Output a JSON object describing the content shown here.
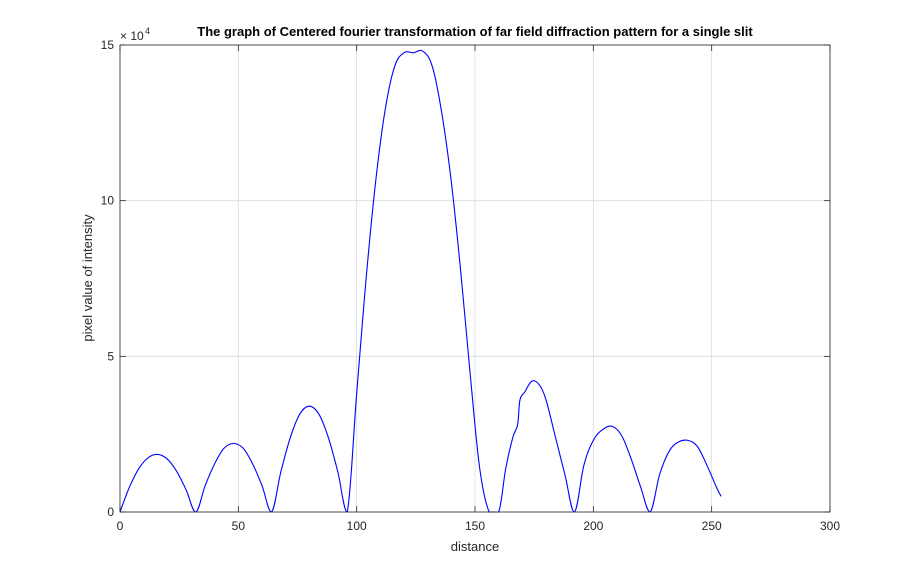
{
  "chart_data": {
    "type": "line",
    "title": "The graph of Centered fourier transformation of far field diffraction pattern for a single slit",
    "xlabel": "distance",
    "ylabel": "pixel value of intensity",
    "xlim": [
      0,
      300
    ],
    "ylim": [
      0,
      150000
    ],
    "x_ticks": [
      "0",
      "50",
      "100",
      "150",
      "200",
      "250",
      "300"
    ],
    "y_ticks": [
      "0",
      "5",
      "10",
      "15"
    ],
    "y_exponent_base": "× 10",
    "y_exponent_power": "4",
    "grid": true,
    "box": true,
    "series": [
      {
        "color": "#0000ff",
        "x": [
          0,
          4,
          8,
          12,
          16,
          20,
          24,
          28,
          32,
          36,
          40,
          44,
          48,
          52,
          56,
          60,
          64,
          68,
          72,
          76,
          80,
          84,
          88,
          92,
          96,
          100,
          104,
          108,
          112,
          116,
          120,
          124,
          128,
          132,
          136,
          140,
          144,
          148,
          152,
          156,
          160,
          163,
          166,
          168,
          169,
          171,
          174,
          177,
          180,
          184,
          188,
          192,
          196,
          200,
          204,
          208,
          212,
          216,
          220,
          224,
          228,
          232,
          236,
          240,
          244,
          248,
          252,
          254
        ],
        "y": [
          0,
          8000,
          14000,
          17500,
          18500,
          17000,
          13000,
          7000,
          0,
          8500,
          15500,
          20500,
          22000,
          20500,
          15500,
          8500,
          0,
          13000,
          24000,
          31500,
          34000,
          31500,
          24000,
          13000,
          0,
          38000,
          75000,
          106000,
          129000,
          143000,
          147500,
          147500,
          148000,
          143000,
          128000,
          106000,
          77000,
          44000,
          14000,
          0,
          0,
          14000,
          24000,
          28000,
          36000,
          38500,
          42000,
          41000,
          36000,
          24000,
          12000,
          0,
          15000,
          23000,
          26500,
          27500,
          24500,
          17000,
          8000,
          0,
          12000,
          19500,
          22500,
          23000,
          21000,
          15000,
          8000,
          5000
        ]
      }
    ]
  }
}
